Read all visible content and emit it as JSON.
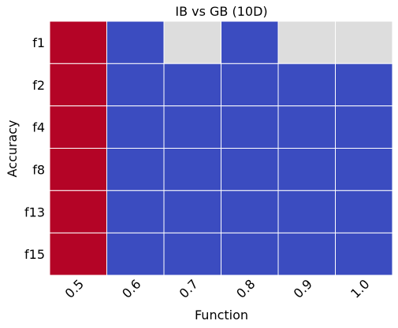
{
  "chart_data": {
    "type": "heatmap",
    "title": "IB vs GB (10D)",
    "xlabel": "Function",
    "ylabel": "Accuracy",
    "x": [
      "0.5",
      "0.6",
      "0.7",
      "0.8",
      "0.9",
      "1.0"
    ],
    "y": [
      "f1",
      "f2",
      "f4",
      "f8",
      "f13",
      "f15"
    ],
    "values": [
      [
        1,
        -1,
        0,
        -1,
        0,
        0
      ],
      [
        1,
        -1,
        -1,
        -1,
        -1,
        -1
      ],
      [
        1,
        -1,
        -1,
        -1,
        -1,
        -1
      ],
      [
        1,
        -1,
        -1,
        -1,
        -1,
        -1
      ],
      [
        1,
        -1,
        -1,
        -1,
        -1,
        -1
      ],
      [
        1,
        -1,
        -1,
        -1,
        -1,
        -1
      ]
    ],
    "color_map": {
      "1": "#b40426",
      "-1": "#3b4cc0",
      "0": "#dddddd"
    },
    "grid_color": "#ffffff",
    "colorbar": false
  }
}
